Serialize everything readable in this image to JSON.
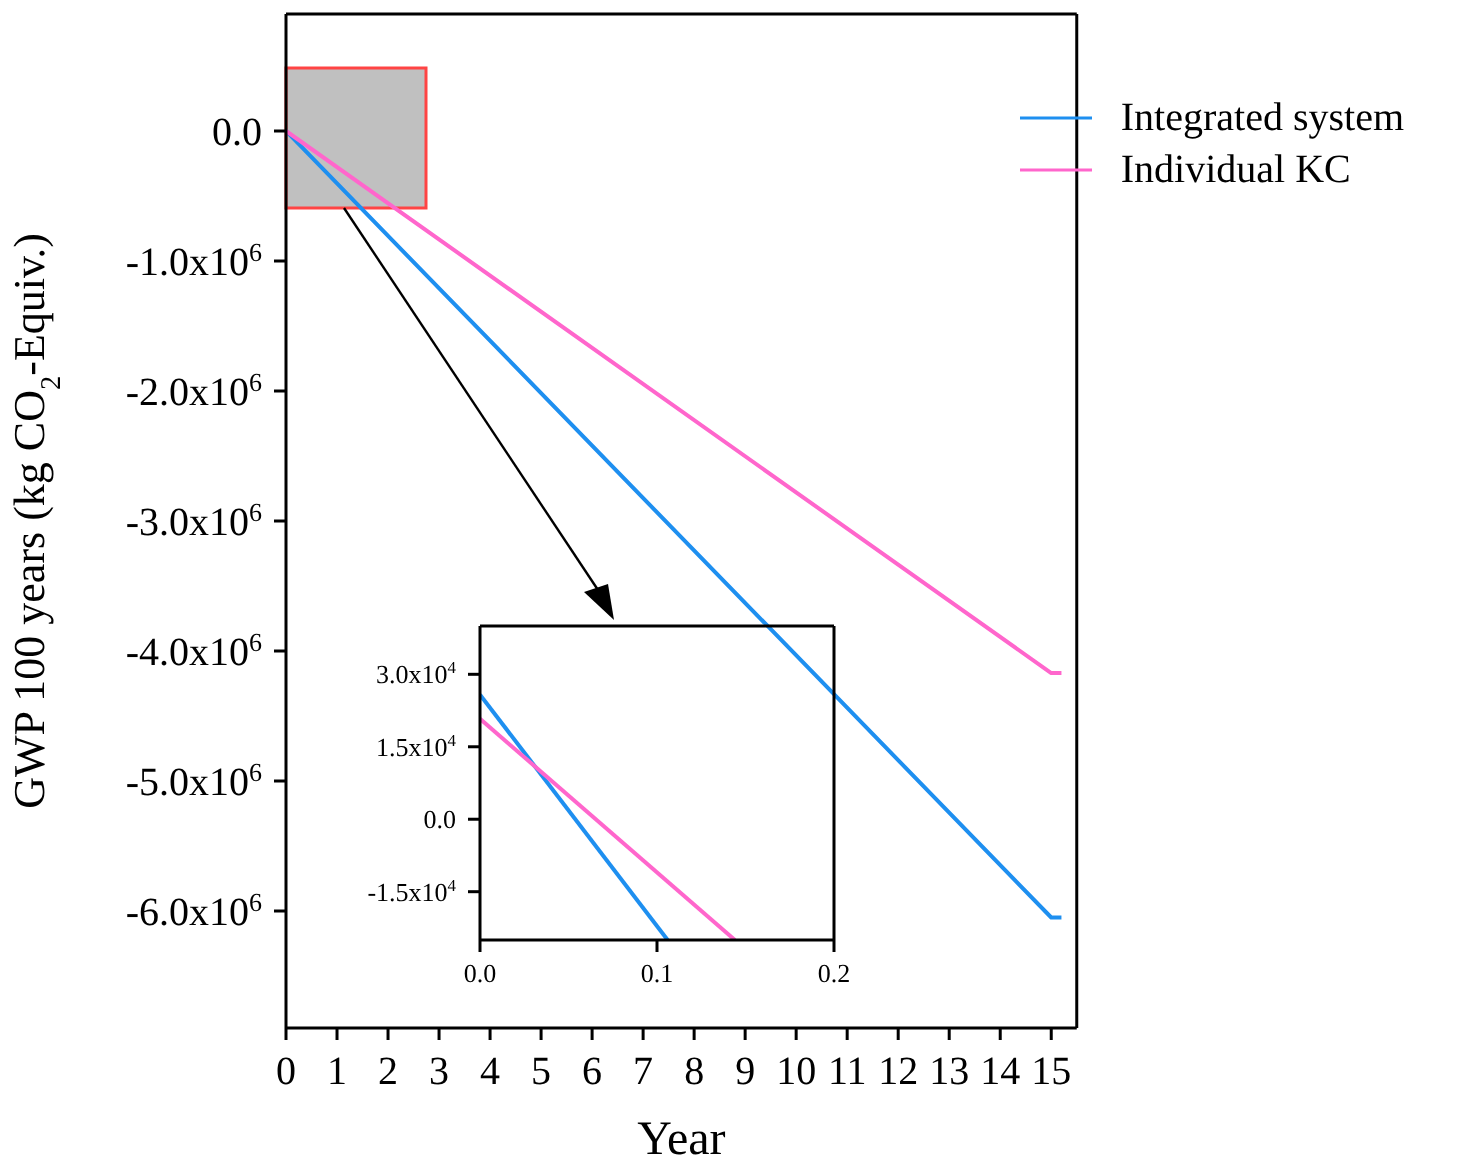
{
  "chart_data": [
    {
      "type": "line",
      "xlabel": "Year",
      "ylabel": "GWP 100 years (kg CO$_{2}$-Equiv.)",
      "xlim": [
        0,
        15.5
      ],
      "ylim": [
        -6900000,
        900000
      ],
      "xticks": [
        0,
        1,
        2,
        3,
        4,
        5,
        6,
        7,
        8,
        9,
        10,
        11,
        12,
        13,
        14,
        15
      ],
      "yticks": [
        {
          "value": 0,
          "label": "0.0"
        },
        {
          "value": -1000000,
          "label": "-1.0x10$^{6}$"
        },
        {
          "value": -2000000,
          "label": "-2.0x10$^{6}$"
        },
        {
          "value": -3000000,
          "label": "-3.0x10$^{6}$"
        },
        {
          "value": -4000000,
          "label": "-4.0x10$^{6}$"
        },
        {
          "value": -5000000,
          "label": "-5.0x10$^{6}$"
        },
        {
          "value": -6000000,
          "label": "-6.0x10$^{6}$"
        }
      ],
      "legend": "top right",
      "series": [
        {
          "name": "Integrated system",
          "color": "#1e8ff0",
          "x": [
            0,
            15,
            15.2
          ],
          "values": [
            0,
            -6050000,
            -6050000
          ]
        },
        {
          "name": "Individual KC",
          "color": "#ff66cc",
          "x": [
            0,
            15,
            15.2
          ],
          "values": [
            0,
            -4170000,
            -4170000
          ]
        }
      ]
    },
    {
      "type": "line",
      "xlim": [
        0,
        0.2
      ],
      "ylim": [
        -25000,
        40000
      ],
      "xticks": [
        {
          "value": 0,
          "label": "0.0"
        },
        0.1,
        0.2
      ],
      "yticks": [
        {
          "value": -15000,
          "label": "-1.5x10$^{4}$"
        },
        {
          "value": 0,
          "label": "0.0"
        },
        {
          "value": 15000,
          "label": "1.5x10$^{4}$"
        },
        {
          "value": 30000,
          "label": "3.0x10$^{4}$"
        }
      ],
      "series": [
        {
          "color": "#1e8ff0",
          "x": [
            0,
            0.106
          ],
          "values": [
            25800,
            -25000
          ]
        },
        {
          "color": "#ff66cc",
          "x": [
            0,
            0.144
          ],
          "values": [
            20800,
            -25000
          ]
        }
      ]
    }
  ]
}
